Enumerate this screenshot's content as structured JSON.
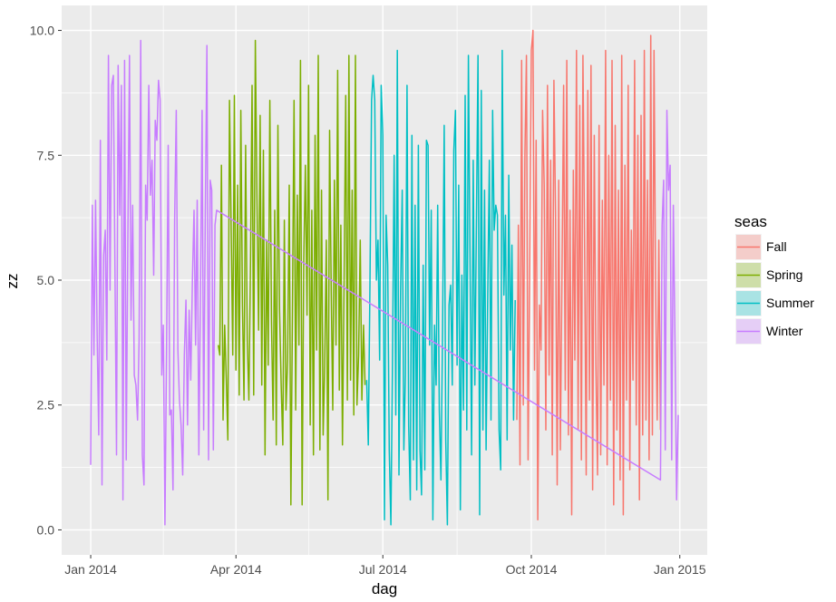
{
  "chart_data": {
    "type": "line",
    "xlabel": "dag",
    "ylabel": "zz",
    "xlim": [
      "2013-12-14",
      "2015-01-18"
    ],
    "ylim": [
      -0.5,
      10.5
    ],
    "x_ticks": [
      {
        "date": "2014-01-01",
        "label": "Jan 2014"
      },
      {
        "date": "2014-04-01",
        "label": "Apr 2014"
      },
      {
        "date": "2014-07-01",
        "label": "Jul 2014"
      },
      {
        "date": "2014-10-01",
        "label": "Oct 2014"
      },
      {
        "date": "2015-01-01",
        "label": "Jan 2015"
      }
    ],
    "x_minor": [
      "2014-02-15",
      "2014-05-16",
      "2014-08-16",
      "2014-11-16"
    ],
    "y_ticks": [
      0.0,
      2.5,
      5.0,
      7.5,
      10.0
    ],
    "y_tick_labels": [
      "0.0",
      "2.5",
      "5.0",
      "7.5",
      "10.0"
    ],
    "grid": true,
    "legend": {
      "title": "seas",
      "position": "right"
    },
    "background": "#ebebeb",
    "series": [
      {
        "name": "Fall",
        "color": "#f8766d",
        "x": [
          "2014-09-22",
          "2014-09-23",
          "2014-09-24",
          "2014-09-25",
          "2014-09-26",
          "2014-09-27",
          "2014-09-28",
          "2014-09-29",
          "2014-09-30",
          "2014-10-01",
          "2014-10-02",
          "2014-10-03",
          "2014-10-04",
          "2014-10-05",
          "2014-10-06",
          "2014-10-07",
          "2014-10-08",
          "2014-10-09",
          "2014-10-10",
          "2014-10-11",
          "2014-10-12",
          "2014-10-13",
          "2014-10-14",
          "2014-10-15",
          "2014-10-16",
          "2014-10-17",
          "2014-10-18",
          "2014-10-19",
          "2014-10-20",
          "2014-10-21",
          "2014-10-22",
          "2014-10-23",
          "2014-10-24",
          "2014-10-25",
          "2014-10-26",
          "2014-10-27",
          "2014-10-28",
          "2014-10-29",
          "2014-10-30",
          "2014-10-31",
          "2014-11-01",
          "2014-11-02",
          "2014-11-03",
          "2014-11-04",
          "2014-11-05",
          "2014-11-06",
          "2014-11-07",
          "2014-11-08",
          "2014-11-09",
          "2014-11-10",
          "2014-11-11",
          "2014-11-12",
          "2014-11-13",
          "2014-11-14",
          "2014-11-15",
          "2014-11-16",
          "2014-11-17",
          "2014-11-18",
          "2014-11-19",
          "2014-11-20",
          "2014-11-21",
          "2014-11-22",
          "2014-11-23",
          "2014-11-24",
          "2014-11-25",
          "2014-11-26",
          "2014-11-27",
          "2014-11-28",
          "2014-11-29",
          "2014-11-30",
          "2014-12-01",
          "2014-12-02",
          "2014-12-03",
          "2014-12-04",
          "2014-12-05",
          "2014-12-06",
          "2014-12-07",
          "2014-12-08",
          "2014-12-09",
          "2014-12-10",
          "2014-12-11",
          "2014-12-12",
          "2014-12-13",
          "2014-12-14",
          "2014-12-15",
          "2014-12-16",
          "2014-12-17",
          "2014-12-18",
          "2014-12-19",
          "2014-12-20"
        ],
        "values": [
          2.2,
          6.1,
          1.3,
          9.4,
          2.5,
          7.5,
          9.5,
          1.4,
          5.2,
          9.6,
          10.0,
          3.2,
          7.8,
          0.2,
          4.5,
          3.6,
          8.4,
          6.9,
          2.0,
          8.9,
          3.1,
          7.4,
          1.5,
          9.0,
          6.3,
          0.9,
          7.0,
          1.6,
          5.1,
          8.9,
          2.8,
          9.4,
          1.9,
          6.4,
          0.3,
          7.2,
          3.4,
          9.6,
          2.0,
          8.5,
          1.4,
          9.5,
          5.8,
          1.1,
          8.8,
          2.6,
          9.3,
          0.8,
          7.9,
          3.3,
          1.1,
          8.1,
          1.5,
          6.6,
          2.9,
          9.6,
          1.3,
          7.5,
          2.6,
          9.4,
          0.5,
          8.1,
          2.0,
          6.8,
          1.0,
          9.5,
          0.3,
          7.3,
          2.6,
          8.9,
          1.2,
          6.0,
          3.0,
          9.4,
          2.1,
          7.9,
          0.6,
          8.3,
          1.9,
          9.6,
          2.2,
          7.0,
          1.4,
          9.9,
          1.9,
          9.6,
          4.9,
          2.2,
          5.8,
          2.0
        ]
      },
      {
        "name": "Spring",
        "color": "#7cae00",
        "x": [
          "2014-03-21",
          "2014-03-22",
          "2014-03-23",
          "2014-03-24",
          "2014-03-25",
          "2014-03-26",
          "2014-03-27",
          "2014-03-28",
          "2014-03-29",
          "2014-03-30",
          "2014-03-31",
          "2014-04-01",
          "2014-04-02",
          "2014-04-03",
          "2014-04-04",
          "2014-04-05",
          "2014-04-06",
          "2014-04-07",
          "2014-04-08",
          "2014-04-09",
          "2014-04-10",
          "2014-04-11",
          "2014-04-12",
          "2014-04-13",
          "2014-04-14",
          "2014-04-15",
          "2014-04-16",
          "2014-04-17",
          "2014-04-18",
          "2014-04-19",
          "2014-04-20",
          "2014-04-21",
          "2014-04-22",
          "2014-04-23",
          "2014-04-24",
          "2014-04-25",
          "2014-04-26",
          "2014-04-27",
          "2014-04-28",
          "2014-04-29",
          "2014-04-30",
          "2014-05-01",
          "2014-05-02",
          "2014-05-03",
          "2014-05-04",
          "2014-05-05",
          "2014-05-06",
          "2014-05-07",
          "2014-05-08",
          "2014-05-09",
          "2014-05-10",
          "2014-05-11",
          "2014-05-12",
          "2014-05-13",
          "2014-05-14",
          "2014-05-15",
          "2014-05-16",
          "2014-05-17",
          "2014-05-18",
          "2014-05-19",
          "2014-05-20",
          "2014-05-21",
          "2014-05-22",
          "2014-05-23",
          "2014-05-24",
          "2014-05-25",
          "2014-05-26",
          "2014-05-27",
          "2014-05-28",
          "2014-05-29",
          "2014-05-30",
          "2014-05-31",
          "2014-06-01",
          "2014-06-02",
          "2014-06-03",
          "2014-06-04",
          "2014-06-05",
          "2014-06-06",
          "2014-06-07",
          "2014-06-08",
          "2014-06-09",
          "2014-06-10",
          "2014-06-11",
          "2014-06-12",
          "2014-06-13",
          "2014-06-14",
          "2014-06-15",
          "2014-06-16",
          "2014-06-17",
          "2014-06-18",
          "2014-06-19",
          "2014-06-20"
        ],
        "values": [
          3.7,
          3.5,
          7.3,
          2.2,
          4.1,
          3.0,
          1.8,
          8.6,
          6.1,
          3.5,
          8.7,
          3.2,
          6.9,
          2.7,
          8.4,
          4.5,
          2.6,
          7.7,
          3.8,
          2.6,
          5.4,
          8.9,
          2.7,
          9.8,
          6.6,
          4.0,
          8.3,
          2.9,
          7.6,
          1.5,
          5.8,
          3.3,
          8.6,
          4.2,
          2.2,
          6.4,
          1.7,
          8.1,
          4.4,
          2.9,
          1.7,
          6.2,
          2.4,
          3.4,
          6.9,
          0.5,
          4.3,
          8.6,
          2.4,
          6.7,
          3.7,
          9.4,
          0.5,
          5.4,
          7.3,
          4.3,
          8.9,
          2.1,
          6.4,
          1.5,
          7.9,
          3.6,
          9.5,
          1.6,
          6.8,
          1.9,
          3.3,
          5.8,
          0.6,
          8.0,
          4.8,
          2.4,
          7.0,
          3.7,
          9.2,
          2.8,
          6.1,
          1.7,
          5.0,
          8.7,
          2.6,
          9.5,
          3.0,
          6.8,
          2.3,
          9.5,
          2.5,
          3.5,
          5.8,
          2.6,
          4.1,
          2.9
        ]
      },
      {
        "name": "Summer",
        "color": "#00bfc4",
        "x": [
          "2014-06-21",
          "2014-06-22",
          "2014-06-23",
          "2014-06-24",
          "2014-06-25",
          "2014-06-26",
          "2014-06-27",
          "2014-06-28",
          "2014-06-29",
          "2014-06-30",
          "2014-07-01",
          "2014-07-02",
          "2014-07-03",
          "2014-07-04",
          "2014-07-05",
          "2014-07-06",
          "2014-07-07",
          "2014-07-08",
          "2014-07-09",
          "2014-07-10",
          "2014-07-11",
          "2014-07-12",
          "2014-07-13",
          "2014-07-14",
          "2014-07-15",
          "2014-07-16",
          "2014-07-17",
          "2014-07-18",
          "2014-07-19",
          "2014-07-20",
          "2014-07-21",
          "2014-07-22",
          "2014-07-23",
          "2014-07-24",
          "2014-07-25",
          "2014-07-26",
          "2014-07-27",
          "2014-07-28",
          "2014-07-29",
          "2014-07-30",
          "2014-07-31",
          "2014-08-01",
          "2014-08-02",
          "2014-08-03",
          "2014-08-04",
          "2014-08-05",
          "2014-08-06",
          "2014-08-07",
          "2014-08-08",
          "2014-08-09",
          "2014-08-10",
          "2014-08-11",
          "2014-08-12",
          "2014-08-13",
          "2014-08-14",
          "2014-08-15",
          "2014-08-16",
          "2014-08-17",
          "2014-08-18",
          "2014-08-19",
          "2014-08-20",
          "2014-08-21",
          "2014-08-22",
          "2014-08-23",
          "2014-08-24",
          "2014-08-25",
          "2014-08-26",
          "2014-08-27",
          "2014-08-28",
          "2014-08-29",
          "2014-08-30",
          "2014-08-31",
          "2014-09-01",
          "2014-09-02",
          "2014-09-03",
          "2014-09-04",
          "2014-09-05",
          "2014-09-06",
          "2014-09-07",
          "2014-09-08",
          "2014-09-09",
          "2014-09-10",
          "2014-09-11",
          "2014-09-12",
          "2014-09-13",
          "2014-09-14",
          "2014-09-15",
          "2014-09-16",
          "2014-09-17",
          "2014-09-18",
          "2014-09-19",
          "2014-09-20",
          "2014-09-21"
        ],
        "values": [
          3.0,
          1.7,
          4.9,
          8.6,
          9.1,
          8.6,
          5.0,
          5.8,
          3.4,
          8.9,
          7.9,
          0.2,
          6.3,
          5.3,
          1.6,
          0.1,
          3.4,
          7.5,
          2.3,
          9.6,
          1.1,
          4.8,
          6.8,
          1.6,
          3.1,
          8.9,
          2.1,
          0.6,
          7.9,
          1.4,
          6.5,
          0.8,
          7.7,
          1.6,
          0.7,
          5.3,
          1.2,
          7.8,
          7.7,
          3.7,
          6.4,
          0.2,
          4.1,
          2.9,
          6.5,
          2.4,
          1.0,
          4.0,
          8.1,
          1.8,
          0.1,
          4.5,
          4.9,
          2.9,
          7.6,
          8.4,
          3.3,
          6.9,
          0.4,
          5.1,
          2.4,
          8.7,
          2.0,
          9.5,
          5.6,
          1.5,
          7.4,
          2.9,
          6.3,
          9.5,
          0.3,
          8.8,
          2.0,
          6.8,
          1.6,
          4.7,
          7.4,
          2.2,
          8.4,
          6.0,
          6.5,
          6.3,
          2.0,
          1.2,
          9.6,
          4.7,
          6.3,
          1.8,
          7.1,
          3.6,
          5.7,
          2.2,
          4.6
        ]
      },
      {
        "name": "Winter",
        "color": "#c77cff",
        "x": [
          "2014-01-01",
          "2014-01-02",
          "2014-01-03",
          "2014-01-04",
          "2014-01-05",
          "2014-01-06",
          "2014-01-07",
          "2014-01-08",
          "2014-01-09",
          "2014-01-10",
          "2014-01-11",
          "2014-01-12",
          "2014-01-13",
          "2014-01-14",
          "2014-01-15",
          "2014-01-16",
          "2014-01-17",
          "2014-01-18",
          "2014-01-19",
          "2014-01-20",
          "2014-01-21",
          "2014-01-22",
          "2014-01-23",
          "2014-01-24",
          "2014-01-25",
          "2014-01-26",
          "2014-01-27",
          "2014-01-28",
          "2014-01-29",
          "2014-01-30",
          "2014-01-31",
          "2014-02-01",
          "2014-02-02",
          "2014-02-03",
          "2014-02-04",
          "2014-02-05",
          "2014-02-06",
          "2014-02-07",
          "2014-02-08",
          "2014-02-09",
          "2014-02-10",
          "2014-02-11",
          "2014-02-12",
          "2014-02-13",
          "2014-02-14",
          "2014-02-15",
          "2014-02-16",
          "2014-02-17",
          "2014-02-18",
          "2014-02-19",
          "2014-02-20",
          "2014-02-21",
          "2014-02-22",
          "2014-02-23",
          "2014-02-24",
          "2014-02-25",
          "2014-02-26",
          "2014-02-27",
          "2014-02-28",
          "2014-03-01",
          "2014-03-02",
          "2014-03-03",
          "2014-03-04",
          "2014-03-05",
          "2014-03-06",
          "2014-03-07",
          "2014-03-08",
          "2014-03-09",
          "2014-03-10",
          "2014-03-11",
          "2014-03-12",
          "2014-03-13",
          "2014-03-14",
          "2014-03-15",
          "2014-03-16",
          "2014-03-17",
          "2014-03-18",
          "2014-03-19",
          "2014-03-20",
          "2014-12-20",
          "2014-12-21",
          "2014-12-22",
          "2014-12-23",
          "2014-12-24",
          "2014-12-25",
          "2014-12-26",
          "2014-12-27",
          "2014-12-28",
          "2014-12-29",
          "2014-12-30",
          "2014-12-31"
        ],
        "values": [
          1.3,
          6.5,
          3.5,
          6.6,
          3.8,
          1.9,
          7.8,
          0.9,
          5.5,
          6.0,
          3.4,
          9.5,
          4.8,
          8.9,
          9.1,
          5.4,
          1.5,
          9.3,
          6.3,
          8.9,
          0.6,
          9.4,
          1.4,
          5.8,
          9.5,
          4.2,
          6.5,
          3.1,
          2.9,
          2.2,
          3.8,
          9.8,
          1.5,
          0.9,
          6.9,
          6.2,
          8.9,
          6.7,
          7.4,
          5.1,
          8.2,
          7.8,
          9.0,
          8.6,
          3.1,
          4.1,
          0.1,
          3.6,
          7.7,
          2.3,
          2.4,
          0.8,
          6.2,
          8.4,
          3.6,
          2.6,
          2.1,
          1.1,
          3.5,
          4.6,
          2.1,
          4.4,
          3.0,
          5.0,
          6.4,
          3.7,
          6.6,
          1.5,
          4.7,
          8.4,
          2.0,
          6.3,
          9.7,
          1.4,
          7.0,
          6.8,
          1.6,
          6.1,
          6.4,
          1.0,
          6.1,
          7.0,
          1.6,
          8.4,
          6.8,
          7.3,
          1.4,
          6.5,
          3.8,
          0.6,
          2.3
        ]
      }
    ]
  }
}
